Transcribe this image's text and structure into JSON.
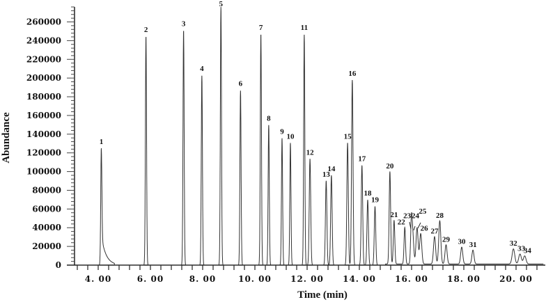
{
  "chart_data": {
    "type": "line",
    "title": "",
    "xlabel": "Time (min)",
    "ylabel": "Abundance",
    "xlim": [
      3.2,
      21.1
    ],
    "ylim": [
      0,
      276000
    ],
    "x_ticks": [
      4,
      6,
      8,
      10,
      12,
      14,
      16,
      18,
      20
    ],
    "x_tick_labels": [
      "4. 00",
      "6. 00",
      "8. 00",
      "10. 00",
      "12. 00",
      "14. 00",
      "16. 00",
      "18. 00",
      "20. 00"
    ],
    "y_ticks": [
      0,
      20000,
      40000,
      60000,
      80000,
      100000,
      120000,
      140000,
      160000,
      180000,
      200000,
      220000,
      240000,
      260000
    ],
    "y_tick_labels": [
      "0",
      "20000",
      "40000",
      "60000",
      "80000",
      "100000",
      "120000",
      "140000",
      "160000",
      "180000",
      "200000",
      "220000",
      "240000",
      "260000"
    ],
    "grid": false,
    "line_color": "#333333",
    "peaks": [
      {
        "label": "1",
        "time": 4.12,
        "abundance": 125000
      },
      {
        "label": "2",
        "time": 5.83,
        "abundance": 244600
      },
      {
        "label": "3",
        "time": 7.27,
        "abundance": 251000
      },
      {
        "label": "4",
        "time": 7.97,
        "abundance": 203000
      },
      {
        "label": "5",
        "time": 8.7,
        "abundance": 276000
      },
      {
        "label": "6",
        "time": 9.45,
        "abundance": 187000
      },
      {
        "label": "7",
        "time": 10.23,
        "abundance": 247000
      },
      {
        "label": "8",
        "time": 10.53,
        "abundance": 150000
      },
      {
        "label": "9",
        "time": 11.04,
        "abundance": 135600
      },
      {
        "label": "10",
        "time": 11.36,
        "abundance": 130600
      },
      {
        "label": "11",
        "time": 11.89,
        "abundance": 247000
      },
      {
        "label": "12",
        "time": 12.11,
        "abundance": 113500
      },
      {
        "label": "13",
        "time": 12.73,
        "abundance": 90000
      },
      {
        "label": "14",
        "time": 12.93,
        "abundance": 95900
      },
      {
        "label": "15",
        "time": 13.55,
        "abundance": 130600
      },
      {
        "label": "16",
        "time": 13.73,
        "abundance": 198000
      },
      {
        "label": "17",
        "time": 14.1,
        "abundance": 106600
      },
      {
        "label": "18",
        "time": 14.32,
        "abundance": 69800
      },
      {
        "label": "19",
        "time": 14.6,
        "abundance": 62800
      },
      {
        "label": "20",
        "time": 15.17,
        "abundance": 98800
      },
      {
        "label": "21",
        "time": 15.33,
        "abundance": 46700
      },
      {
        "label": "22",
        "time": 15.74,
        "abundance": 39200
      },
      {
        "label": "23",
        "time": 15.99,
        "abundance": 36700
      },
      {
        "label": "24",
        "time": 16.04,
        "abundance": 33800
      },
      {
        "label": "25",
        "time": 16.21,
        "abundance": 38700
      },
      {
        "label": "26",
        "time": 16.35,
        "abundance": 32500
      },
      {
        "label": "27",
        "time": 16.88,
        "abundance": 29300
      },
      {
        "label": "28",
        "time": 17.08,
        "abundance": 46200
      },
      {
        "label": "29",
        "time": 17.32,
        "abundance": 20600
      },
      {
        "label": "30",
        "time": 17.92,
        "abundance": 18100
      },
      {
        "label": "31",
        "time": 18.35,
        "abundance": 14900
      },
      {
        "label": "32",
        "time": 19.9,
        "abundance": 16200
      },
      {
        "label": "33",
        "time": 20.15,
        "abundance": 10700
      },
      {
        "label": "34",
        "time": 20.33,
        "abundance": 8700
      }
    ]
  }
}
